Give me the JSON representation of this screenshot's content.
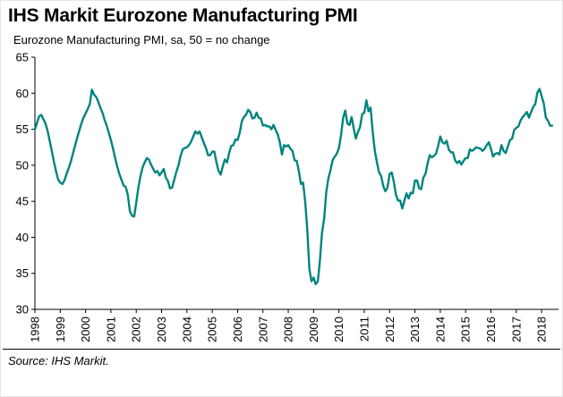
{
  "header": {
    "title": "IHS Markit Eurozone Manufacturing PMI",
    "subtitle": "Eurozone Manufacturing PMI, sa, 50 = no change"
  },
  "footer": {
    "source": "Source: IHS Markit."
  },
  "chart_data": {
    "type": "line",
    "title": "IHS Markit Eurozone Manufacturing PMI",
    "subtitle": "Eurozone Manufacturing PMI, sa, 50 = no change",
    "xlabel": "",
    "ylabel": "",
    "ylim": [
      30,
      65
    ],
    "y_ticks": [
      30,
      35,
      40,
      45,
      50,
      55,
      60,
      65
    ],
    "x_tick_labels": [
      "1998",
      "1999",
      "2000",
      "2001",
      "2002",
      "2003",
      "2004",
      "2005",
      "2006",
      "2007",
      "2008",
      "2009",
      "2010",
      "2011",
      "2012",
      "2013",
      "2014",
      "2015",
      "2016",
      "2017",
      "2018"
    ],
    "start_year": 1998,
    "frequency": "monthly",
    "grid": false,
    "legend": "none",
    "line_color": "#00847E",
    "series": [
      {
        "name": "Eurozone Manufacturing PMI (sa)",
        "values": [
          55.0,
          55.9,
          56.8,
          57.0,
          56.4,
          55.8,
          54.8,
          53.4,
          52.0,
          50.5,
          49.2,
          48.0,
          47.6,
          47.4,
          47.9,
          48.8,
          49.6,
          50.5,
          51.6,
          52.7,
          53.8,
          54.8,
          55.8,
          56.6,
          57.2,
          57.8,
          58.5,
          60.5,
          59.8,
          59.5,
          58.8,
          58.0,
          57.3,
          56.3,
          55.5,
          54.5,
          53.5,
          52.3,
          51.0,
          49.8,
          48.8,
          48.0,
          47.2,
          47.0,
          45.9,
          43.6,
          43.0,
          42.9,
          44.8,
          46.9,
          48.5,
          49.7,
          50.4,
          51.0,
          50.8,
          50.1,
          49.5,
          49.0,
          49.2,
          48.6,
          49.0,
          49.5,
          48.3,
          47.8,
          46.8,
          46.9,
          48.0,
          49.1,
          50.0,
          51.3,
          52.2,
          52.4,
          52.5,
          52.8,
          53.3,
          54.0,
          54.7,
          54.4,
          54.7,
          53.9,
          53.1,
          52.4,
          51.4,
          51.4,
          51.9,
          51.9,
          50.4,
          49.2,
          48.7,
          49.9,
          50.8,
          50.4,
          51.7,
          52.7,
          52.8,
          53.6,
          53.5,
          54.5,
          56.1,
          56.7,
          57.0,
          57.7,
          57.4,
          56.5,
          56.6,
          57.3,
          56.6,
          56.5,
          55.5,
          55.6,
          55.4,
          55.4,
          55.0,
          55.6,
          54.9,
          54.3,
          53.2,
          51.5,
          52.8,
          52.6,
          52.8,
          52.3,
          52.0,
          50.7,
          50.6,
          49.2,
          47.4,
          47.6,
          45.0,
          41.1,
          35.6,
          33.9,
          34.4,
          33.5,
          33.9,
          36.8,
          40.7,
          42.6,
          46.3,
          48.2,
          49.3,
          50.7,
          51.2,
          51.6,
          52.4,
          54.2,
          56.6,
          57.6,
          55.8,
          55.6,
          56.7,
          55.1,
          53.7,
          54.6,
          55.3,
          57.1,
          57.3,
          59.0,
          57.5,
          58.0,
          54.6,
          52.0,
          50.4,
          49.0,
          48.5,
          47.1,
          46.4,
          46.9,
          48.8,
          49.0,
          47.7,
          45.9,
          45.1,
          45.1,
          44.0,
          45.1,
          46.1,
          45.4,
          46.2,
          46.1,
          47.9,
          47.9,
          46.8,
          46.7,
          48.3,
          48.8,
          50.3,
          51.4,
          51.1,
          51.3,
          51.6,
          52.7,
          54.0,
          53.2,
          53.0,
          53.4,
          52.2,
          51.8,
          51.8,
          50.7,
          50.3,
          50.6,
          50.1,
          50.6,
          51.0,
          51.0,
          52.2,
          52.0,
          52.2,
          52.5,
          52.4,
          52.3,
          52.0,
          52.3,
          52.8,
          53.2,
          52.3,
          51.2,
          51.6,
          51.7,
          51.5,
          52.8,
          52.0,
          51.7,
          52.6,
          53.5,
          53.7,
          54.9,
          55.2,
          55.4,
          56.2,
          56.7,
          57.0,
          57.4,
          56.6,
          57.4,
          58.1,
          58.5,
          60.1,
          60.6,
          59.6,
          58.6,
          56.6,
          56.2,
          55.5,
          55.5
        ]
      }
    ]
  }
}
